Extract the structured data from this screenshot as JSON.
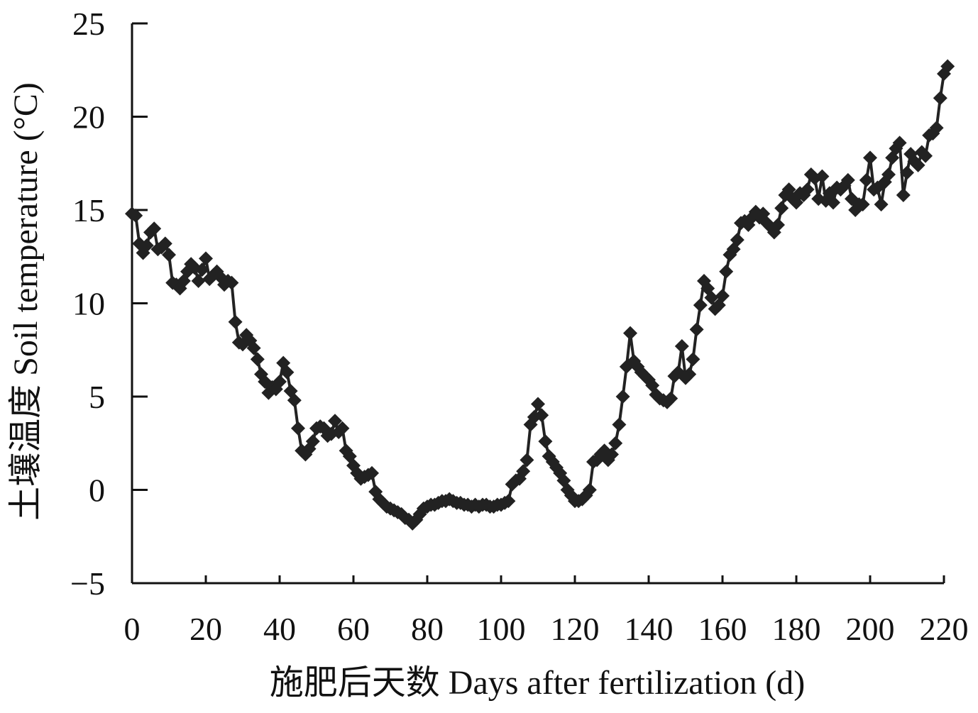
{
  "chart_data": {
    "type": "line",
    "title": "",
    "xlabel": "施肥后天数 Days after fertilization (d)",
    "ylabel": "土壤温度 Soil temperature (°C)",
    "xlim": [
      0,
      220
    ],
    "ylim": [
      -5,
      25
    ],
    "xticks": [
      0,
      20,
      40,
      60,
      80,
      100,
      120,
      140,
      160,
      180,
      200,
      220
    ],
    "yticks": [
      -5,
      0,
      5,
      10,
      15,
      20,
      25
    ],
    "ytick_labels": [
      "−5",
      "0",
      "5",
      "10",
      "15",
      "20",
      "25"
    ],
    "grid": false,
    "legend": "none",
    "marker": "diamond",
    "series": [
      {
        "color": "#222222",
        "points": [
          [
            0,
            14.8
          ],
          [
            1,
            14.7
          ],
          [
            2,
            13.2
          ],
          [
            3,
            12.7
          ],
          [
            4,
            13.1
          ],
          [
            5,
            13.8
          ],
          [
            6,
            14.0
          ],
          [
            7,
            12.9
          ],
          [
            8,
            13.0
          ],
          [
            9,
            13.2
          ],
          [
            10,
            12.6
          ],
          [
            11,
            11.1
          ],
          [
            12,
            11.0
          ],
          [
            13,
            10.8
          ],
          [
            14,
            11.2
          ],
          [
            15,
            11.7
          ],
          [
            16,
            12.1
          ],
          [
            17,
            11.9
          ],
          [
            18,
            11.2
          ],
          [
            19,
            11.8
          ],
          [
            20,
            12.4
          ],
          [
            21,
            11.3
          ],
          [
            22,
            11.5
          ],
          [
            23,
            11.7
          ],
          [
            24,
            11.4
          ],
          [
            25,
            11.0
          ],
          [
            26,
            11.2
          ],
          [
            27,
            11.1
          ],
          [
            28,
            9.0
          ],
          [
            29,
            7.9
          ],
          [
            30,
            7.8
          ],
          [
            31,
            8.3
          ],
          [
            32,
            8.0
          ],
          [
            33,
            7.6
          ],
          [
            34,
            7.0
          ],
          [
            35,
            6.2
          ],
          [
            36,
            5.8
          ],
          [
            37,
            5.2
          ],
          [
            38,
            5.5
          ],
          [
            39,
            5.4
          ],
          [
            40,
            5.8
          ],
          [
            41,
            6.8
          ],
          [
            42,
            6.3
          ],
          [
            43,
            5.3
          ],
          [
            44,
            4.8
          ],
          [
            45,
            3.3
          ],
          [
            46,
            2.1
          ],
          [
            47,
            1.9
          ],
          [
            48,
            2.2
          ],
          [
            49,
            2.6
          ],
          [
            50,
            3.3
          ],
          [
            51,
            3.4
          ],
          [
            52,
            3.3
          ],
          [
            53,
            2.9
          ],
          [
            54,
            3.0
          ],
          [
            55,
            3.7
          ],
          [
            56,
            3.1
          ],
          [
            57,
            3.3
          ],
          [
            58,
            2.1
          ],
          [
            59,
            1.8
          ],
          [
            60,
            1.3
          ],
          [
            61,
            0.9
          ],
          [
            62,
            0.6
          ],
          [
            63,
            0.7
          ],
          [
            64,
            0.8
          ],
          [
            65,
            0.9
          ],
          [
            66,
            -0.1
          ],
          [
            67,
            -0.5
          ],
          [
            68,
            -0.7
          ],
          [
            69,
            -0.9
          ],
          [
            70,
            -1.0
          ],
          [
            71,
            -1.1
          ],
          [
            72,
            -1.2
          ],
          [
            73,
            -1.3
          ],
          [
            74,
            -1.5
          ],
          [
            75,
            -1.6
          ],
          [
            76,
            -1.8
          ],
          [
            77,
            -1.6
          ],
          [
            78,
            -1.3
          ],
          [
            79,
            -1.0
          ],
          [
            80,
            -0.9
          ],
          [
            81,
            -0.8
          ],
          [
            82,
            -0.8
          ],
          [
            83,
            -0.7
          ],
          [
            84,
            -0.6
          ],
          [
            85,
            -0.6
          ],
          [
            86,
            -0.5
          ],
          [
            87,
            -0.6
          ],
          [
            88,
            -0.7
          ],
          [
            89,
            -0.7
          ],
          [
            90,
            -0.8
          ],
          [
            91,
            -0.8
          ],
          [
            92,
            -0.9
          ],
          [
            93,
            -0.8
          ],
          [
            94,
            -0.9
          ],
          [
            95,
            -0.8
          ],
          [
            96,
            -0.8
          ],
          [
            97,
            -0.9
          ],
          [
            98,
            -0.9
          ],
          [
            99,
            -0.8
          ],
          [
            100,
            -0.8
          ],
          [
            101,
            -0.7
          ],
          [
            102,
            -0.6
          ],
          [
            103,
            0.3
          ],
          [
            104,
            0.5
          ],
          [
            105,
            0.6
          ],
          [
            106,
            1.0
          ],
          [
            107,
            1.6
          ],
          [
            108,
            3.5
          ],
          [
            109,
            3.9
          ],
          [
            110,
            4.6
          ],
          [
            111,
            4.0
          ],
          [
            112,
            2.6
          ],
          [
            113,
            1.8
          ],
          [
            114,
            1.5
          ],
          [
            115,
            1.2
          ],
          [
            116,
            0.9
          ],
          [
            117,
            0.5
          ],
          [
            118,
            0.0
          ],
          [
            119,
            -0.3
          ],
          [
            120,
            -0.6
          ],
          [
            121,
            -0.6
          ],
          [
            122,
            -0.5
          ],
          [
            123,
            -0.3
          ],
          [
            124,
            0.0
          ],
          [
            125,
            1.5
          ],
          [
            126,
            1.6
          ],
          [
            127,
            1.9
          ],
          [
            128,
            2.1
          ],
          [
            129,
            1.6
          ],
          [
            130,
            1.9
          ],
          [
            131,
            2.5
          ],
          [
            132,
            3.5
          ],
          [
            133,
            5.0
          ],
          [
            134,
            6.6
          ],
          [
            135,
            8.4
          ],
          [
            136,
            6.9
          ],
          [
            137,
            6.6
          ],
          [
            138,
            6.3
          ],
          [
            139,
            6.1
          ],
          [
            140,
            5.9
          ],
          [
            141,
            5.6
          ],
          [
            142,
            5.1
          ],
          [
            143,
            4.9
          ],
          [
            144,
            4.8
          ],
          [
            145,
            4.7
          ],
          [
            146,
            4.9
          ],
          [
            147,
            6.1
          ],
          [
            148,
            6.3
          ],
          [
            149,
            7.7
          ],
          [
            150,
            6.0
          ],
          [
            151,
            6.2
          ],
          [
            152,
            7.0
          ],
          [
            153,
            8.6
          ],
          [
            154,
            9.9
          ],
          [
            155,
            11.2
          ],
          [
            156,
            10.8
          ],
          [
            157,
            10.3
          ],
          [
            158,
            9.7
          ],
          [
            159,
            9.9
          ],
          [
            160,
            10.4
          ],
          [
            161,
            11.7
          ],
          [
            162,
            12.6
          ],
          [
            163,
            12.9
          ],
          [
            164,
            13.4
          ],
          [
            165,
            14.3
          ],
          [
            166,
            14.4
          ],
          [
            167,
            14.2
          ],
          [
            168,
            14.6
          ],
          [
            169,
            14.9
          ],
          [
            170,
            14.6
          ],
          [
            171,
            14.8
          ],
          [
            172,
            14.3
          ],
          [
            173,
            14.1
          ],
          [
            174,
            13.8
          ],
          [
            175,
            14.2
          ],
          [
            176,
            15.1
          ],
          [
            177,
            15.8
          ],
          [
            178,
            16.1
          ],
          [
            179,
            15.6
          ],
          [
            180,
            15.4
          ],
          [
            181,
            15.9
          ],
          [
            182,
            15.8
          ],
          [
            183,
            16.1
          ],
          [
            184,
            16.9
          ],
          [
            185,
            16.7
          ],
          [
            186,
            15.6
          ],
          [
            187,
            16.8
          ],
          [
            188,
            15.5
          ],
          [
            189,
            15.9
          ],
          [
            190,
            15.4
          ],
          [
            191,
            16.2
          ],
          [
            192,
            16.1
          ],
          [
            193,
            16.3
          ],
          [
            194,
            16.6
          ],
          [
            195,
            15.6
          ],
          [
            196,
            15.0
          ],
          [
            197,
            15.3
          ],
          [
            198,
            15.3
          ],
          [
            199,
            16.6
          ],
          [
            200,
            17.8
          ],
          [
            201,
            16.1
          ],
          [
            202,
            16.2
          ],
          [
            203,
            15.3
          ],
          [
            204,
            16.5
          ],
          [
            205,
            16.9
          ],
          [
            206,
            17.8
          ],
          [
            207,
            18.3
          ],
          [
            208,
            18.6
          ],
          [
            209,
            15.8
          ],
          [
            210,
            17.0
          ],
          [
            211,
            18.0
          ],
          [
            212,
            17.6
          ],
          [
            213,
            17.4
          ],
          [
            214,
            18.1
          ],
          [
            215,
            17.9
          ],
          [
            216,
            19.0
          ],
          [
            217,
            19.1
          ],
          [
            218,
            19.4
          ],
          [
            219,
            21.0
          ],
          [
            220,
            22.3
          ],
          [
            221,
            22.7
          ]
        ]
      }
    ]
  }
}
